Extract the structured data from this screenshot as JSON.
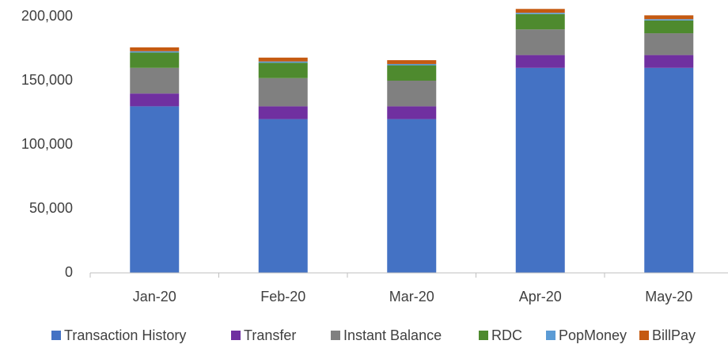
{
  "chart_data": {
    "type": "stacked_bar",
    "categories": [
      "Jan-20",
      "Feb-20",
      "Mar-20",
      "Apr-20",
      "May-20"
    ],
    "series": [
      {
        "name": "Transaction History",
        "color": "#4472c4",
        "values": [
          130000,
          120000,
          120000,
          160000,
          160000
        ]
      },
      {
        "name": "Transfer",
        "color": "#7030a0",
        "values": [
          10000,
          10000,
          10000,
          10000,
          10000
        ]
      },
      {
        "name": "Instant Balance",
        "color": "#808080",
        "values": [
          20000,
          22000,
          20000,
          20000,
          17000
        ]
      },
      {
        "name": "RDC",
        "color": "#4e8a2e",
        "values": [
          12000,
          12000,
          12000,
          12000,
          10000
        ]
      },
      {
        "name": "PopMoney",
        "color": "#5b9bd5",
        "values": [
          1000,
          1000,
          1000,
          1000,
          1000
        ]
      },
      {
        "name": "BillPay",
        "color": "#c55a11",
        "values": [
          3000,
          3000,
          3000,
          3000,
          3000
        ]
      }
    ],
    "ylim": [
      0,
      210000
    ],
    "yticks": [
      0,
      {
        "value": 50000,
        "label": "50,000"
      },
      {
        "value": 100000,
        "label": "100,000"
      },
      {
        "value": 150000,
        "label": "150,000"
      },
      {
        "value": 200000,
        "label": "200,000"
      }
    ],
    "grid": false,
    "legend": "bottom"
  }
}
